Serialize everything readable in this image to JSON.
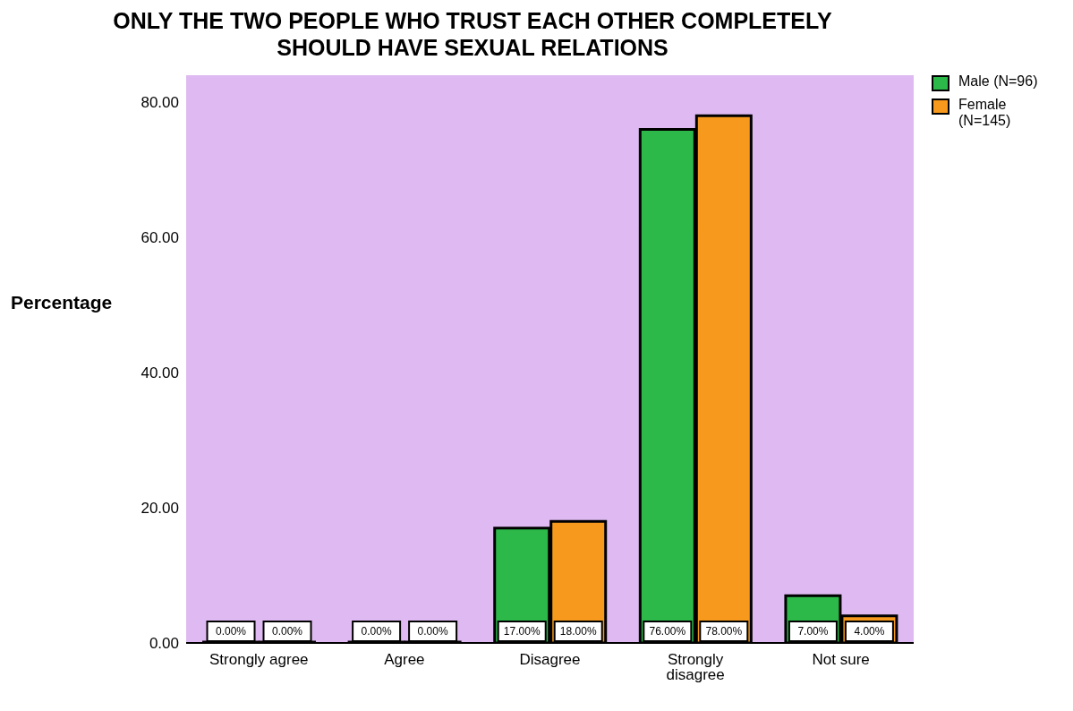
{
  "chart_data": {
    "type": "bar",
    "title": "ONLY THE TWO PEOPLE WHO TRUST EACH OTHER COMPLETELY SHOULD HAVE SEXUAL RELATIONS",
    "ylabel": "Percentage",
    "categories": [
      "Strongly agree",
      "Agree",
      "Disagree",
      "Strongly disagree",
      "Not sure"
    ],
    "series": [
      {
        "name": "Male (N=96)",
        "color": "#2db84a",
        "values": [
          0,
          0,
          17,
          76,
          7
        ],
        "value_labels": [
          "0.00%",
          "0.00%",
          "17.00%",
          "76.00%",
          "7.00%"
        ]
      },
      {
        "name": "Female (N=145)",
        "color": "#f7991c",
        "values": [
          0,
          0,
          18,
          78,
          4
        ],
        "value_labels": [
          "0.00%",
          "0.00%",
          "18.00%",
          "78.00%",
          "4.00%"
        ]
      }
    ],
    "ylim": [
      0,
      84
    ],
    "yticks": [
      {
        "value": 0,
        "label": "0.00"
      },
      {
        "value": 20,
        "label": "20.00"
      },
      {
        "value": 40,
        "label": "40.00"
      },
      {
        "value": 60,
        "label": "60.00"
      },
      {
        "value": 80,
        "label": "80.00"
      }
    ],
    "grid": false,
    "legend": "top right"
  }
}
